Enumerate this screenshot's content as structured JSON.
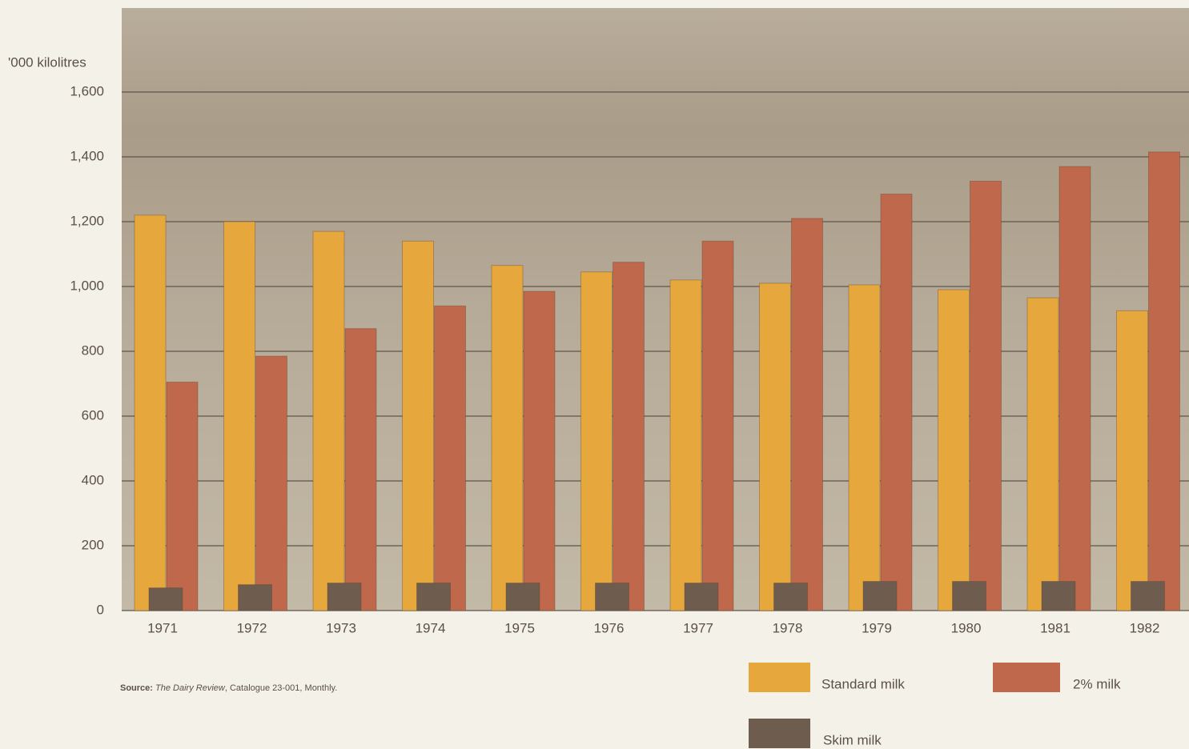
{
  "chart_data": {
    "type": "bar",
    "y_label": "'000 kilolitres",
    "categories": [
      "1971",
      "1972",
      "1973",
      "1974",
      "1975",
      "1976",
      "1977",
      "1978",
      "1979",
      "1980",
      "1981",
      "1982"
    ],
    "series": [
      {
        "name": "Standard milk",
        "color": "#e6a83c",
        "values": [
          1220,
          1200,
          1170,
          1140,
          1065,
          1045,
          1020,
          1010,
          1005,
          990,
          965,
          925
        ]
      },
      {
        "name": "2% milk",
        "color": "#c0684b",
        "values": [
          705,
          785,
          870,
          940,
          985,
          1075,
          1140,
          1210,
          1285,
          1325,
          1370,
          1415
        ]
      },
      {
        "name": "Skim milk",
        "color": "#6e5d4f",
        "values": [
          70,
          80,
          85,
          85,
          85,
          85,
          85,
          85,
          90,
          90,
          90,
          90
        ]
      }
    ],
    "ylim": [
      0,
      1600
    ],
    "yticks": [
      0,
      200,
      400,
      600,
      800,
      {
        "value": 1000,
        "label": "1,000"
      },
      {
        "value": 1200,
        "label": "1,200"
      },
      {
        "value": 1400,
        "label": "1,400"
      },
      {
        "value": 1600,
        "label": "1,600"
      }
    ],
    "grid": true,
    "source": {
      "label": "Source:",
      "title": "The Dairy Review",
      "rest": ", Catalogue 23-001, Monthly."
    }
  }
}
